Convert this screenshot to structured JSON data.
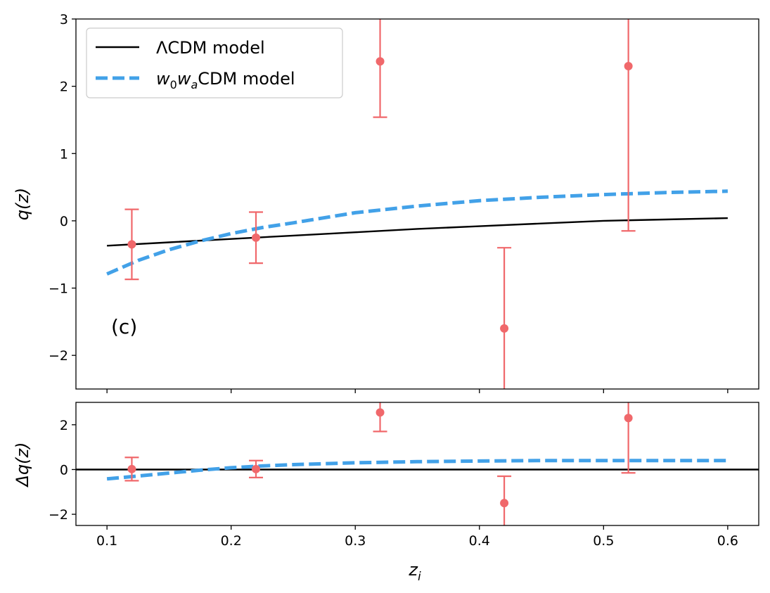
{
  "chart_data": [
    {
      "type": "line",
      "panel": "top",
      "ylabel": "q(z)",
      "ylim": [
        -2.5,
        3
      ],
      "xlim": [
        0.075,
        0.625
      ],
      "yticks": [
        -2,
        -1,
        0,
        1,
        2,
        3
      ],
      "ytick_labels": [
        "−2",
        "−1",
        "0",
        "1",
        "2",
        "3"
      ],
      "annotation": "(c)",
      "legend": {
        "position": "top-left",
        "entries": [
          {
            "label": "ΛCDM model",
            "style": "solid",
            "color": "#000000"
          },
          {
            "label_prefix": "w",
            "label_sub1": "0",
            "label_mid": "w",
            "label_sub2": "a",
            "label_suffix": "CDM model",
            "style": "dashed",
            "color": "#42a1e8"
          }
        ]
      },
      "series": [
        {
          "name": "ΛCDM model",
          "x": [
            0.1,
            0.15,
            0.2,
            0.25,
            0.3,
            0.35,
            0.4,
            0.45,
            0.5,
            0.55,
            0.6
          ],
          "y": [
            -0.37,
            -0.32,
            -0.27,
            -0.22,
            -0.17,
            -0.12,
            -0.08,
            -0.04,
            0.0,
            0.02,
            0.04
          ]
        },
        {
          "name": "w0waCDM model",
          "x": [
            0.1,
            0.125,
            0.15,
            0.175,
            0.2,
            0.225,
            0.25,
            0.3,
            0.35,
            0.4,
            0.45,
            0.5,
            0.55,
            0.6
          ],
          "y": [
            -0.79,
            -0.59,
            -0.43,
            -0.3,
            -0.19,
            -0.1,
            -0.03,
            0.12,
            0.22,
            0.3,
            0.35,
            0.39,
            0.42,
            0.44
          ]
        },
        {
          "name": "data",
          "x": [
            0.12,
            0.22,
            0.32,
            0.42,
            0.52
          ],
          "y": [
            -0.35,
            -0.25,
            2.37,
            -1.6,
            2.3
          ],
          "yerr_low": [
            0.52,
            0.38,
            0.83,
            1.5,
            2.45
          ],
          "yerr_high": [
            0.52,
            0.38,
            1.0,
            1.2,
            1.2
          ],
          "color": "#f0686b"
        }
      ]
    },
    {
      "type": "line",
      "panel": "bottom",
      "ylabel": "Δq(z)",
      "xlabel_main": "z",
      "xlabel_sub": "i",
      "ylim": [
        -2.5,
        3
      ],
      "xlim": [
        0.075,
        0.625
      ],
      "yticks": [
        -2,
        0,
        2
      ],
      "ytick_labels": [
        "−2",
        "0",
        "2"
      ],
      "xticks": [
        0.1,
        0.2,
        0.3,
        0.4,
        0.5,
        0.6
      ],
      "xtick_labels": [
        "0.1",
        "0.2",
        "0.3",
        "0.4",
        "0.5",
        "0.6"
      ],
      "series": [
        {
          "name": "ΛCDM model",
          "x": [
            0.075,
            0.625
          ],
          "y": [
            0,
            0
          ]
        },
        {
          "name": "w0waCDM model",
          "x": [
            0.1,
            0.125,
            0.15,
            0.175,
            0.2,
            0.225,
            0.25,
            0.3,
            0.35,
            0.4,
            0.45,
            0.5,
            0.55,
            0.6
          ],
          "y": [
            -0.42,
            -0.29,
            -0.16,
            -0.03,
            0.08,
            0.16,
            0.22,
            0.3,
            0.35,
            0.38,
            0.4,
            0.4,
            0.4,
            0.4
          ]
        },
        {
          "name": "data",
          "x": [
            0.12,
            0.22,
            0.32,
            0.42,
            0.52
          ],
          "y": [
            0.02,
            0.02,
            2.55,
            -1.5,
            2.3
          ],
          "yerr_low": [
            0.52,
            0.38,
            0.85,
            1.2,
            2.45
          ],
          "yerr_high": [
            0.52,
            0.38,
            0.8,
            1.2,
            1.2
          ],
          "color": "#f0686b"
        }
      ]
    }
  ]
}
